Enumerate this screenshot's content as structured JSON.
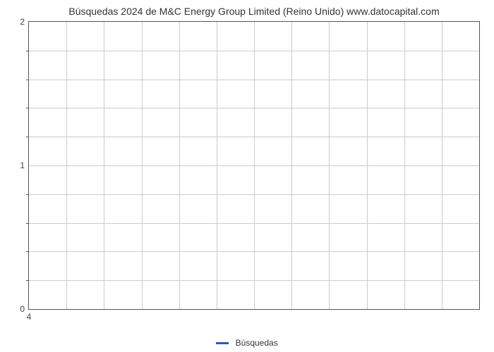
{
  "chart": {
    "type": "line",
    "title": "Búsquedas 2024 de M&C Energy Group Limited (Reino Unido) www.datocapital.com",
    "title_fontsize": 14,
    "title_color": "#333333",
    "background_color": "#ffffff",
    "border_color": "#555555",
    "grid_color": "#cccccc",
    "ylim": [
      0,
      2
    ],
    "ytick_major": [
      0,
      1,
      2
    ],
    "ytick_minor_count": 4,
    "ytick_label_fontsize": 12,
    "ytick_label_color": "#444444",
    "xlim": [
      4,
      16
    ],
    "xtick_major": [
      4
    ],
    "xtick_vgrid_count": 12,
    "xtick_label_fontsize": 12,
    "xtick_label_color": "#444444",
    "series": [
      {
        "name": "Búsquedas",
        "color": "#1f5fbf",
        "line_width": 3,
        "data": []
      }
    ],
    "legend": {
      "position": "bottom-center",
      "label": "Búsquedas",
      "fontsize": 12,
      "color": "#333333",
      "line_color": "#1f5fbf"
    }
  }
}
